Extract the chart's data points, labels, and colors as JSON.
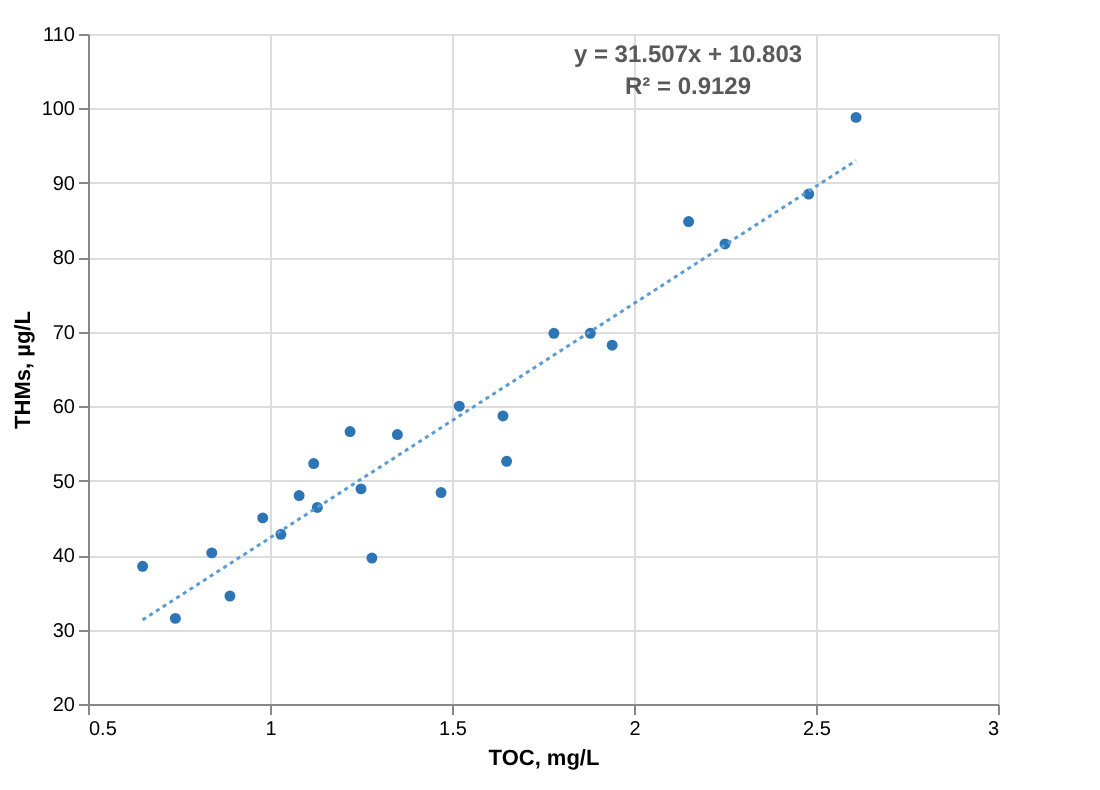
{
  "chart_data": {
    "type": "scatter",
    "xlabel": "TOC, mg/L",
    "ylabel": "THMs, µg/L",
    "xlim": [
      0.5,
      3
    ],
    "xticks": [
      0.5,
      1,
      1.5,
      2,
      2.5,
      3
    ],
    "ylim": [
      20,
      110
    ],
    "yticks": [
      20,
      30,
      40,
      50,
      60,
      70,
      80,
      90,
      100,
      110
    ],
    "grid": true,
    "annotations": [
      "y = 31.507x + 10.803",
      "R² = 0.9129"
    ],
    "series": [
      {
        "color": "#2e75b6",
        "marker": "circle",
        "x": [
          0.65,
          0.74,
          0.84,
          0.89,
          0.98,
          1.03,
          1.08,
          1.12,
          1.13,
          1.22,
          1.25,
          1.28,
          1.35,
          1.47,
          1.52,
          1.64,
          1.65,
          1.78,
          1.88,
          1.94,
          2.15,
          2.25,
          2.48,
          2.61
        ],
        "values": [
          38.5,
          31.5,
          40.3,
          34.5,
          45,
          42.8,
          48,
          52.3,
          46.4,
          56.6,
          48.9,
          39.6,
          56.2,
          48.4,
          60,
          58.7,
          52.6,
          69.8,
          69.8,
          68.2,
          84.8,
          81.8,
          88.5,
          98.8
        ]
      },
      {
        "type": "line",
        "color": "#5b9bd5",
        "line_style": "dotted",
        "marker": "none",
        "x": [
          0.65,
          2.61
        ],
        "values": [
          31.3,
          93.0
        ]
      }
    ]
  }
}
